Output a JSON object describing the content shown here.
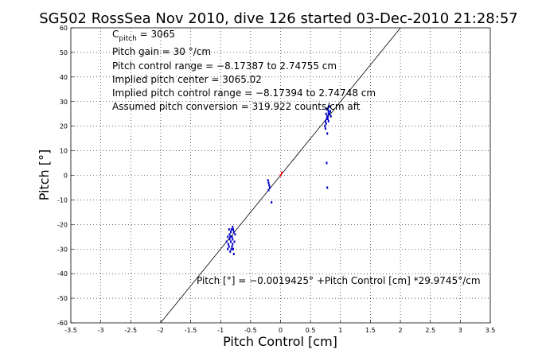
{
  "chart_data": {
    "type": "scatter",
    "title": "SG502 RossSea Nov 2010, dive 126 started 03-Dec-2010 21:28:57",
    "xlabel": "Pitch Control [cm]",
    "ylabel": "Pitch [°]",
    "xlim": [
      -3.5,
      3.5
    ],
    "ylim": [
      -60,
      60
    ],
    "x_ticks": [
      -3.5,
      -3,
      -2.5,
      -2,
      -1.5,
      -1,
      -0.5,
      0,
      0.5,
      1,
      1.5,
      2,
      2.5,
      3,
      3.5
    ],
    "y_ticks": [
      -60,
      -50,
      -40,
      -30,
      -20,
      -10,
      0,
      10,
      20,
      30,
      40,
      50,
      60
    ],
    "grid": true,
    "annotations": {
      "cpitch_symbol": "C",
      "cpitch_sub": "pitch",
      "cpitch_value": " = 3065",
      "gain": "Pitch gain = 30 °/cm",
      "range": "Pitch control range = −8.17387 to 2.74755 cm",
      "center": "Implied pitch center = 3065.02",
      "implied_range": "Implied pitch control range = −8.17394 to 2.74748 cm",
      "conversion": "Assumed pitch conversion = 319.922 counts/cm aft",
      "fit_equation": "Pitch [°] = −0.0019425° +Pitch Control [cm] *29.9745°/cm"
    },
    "fit_line": {
      "intercept": -0.0019425,
      "slope": 29.9745
    },
    "colors": {
      "data": "#0000cc",
      "center": "#ff0000",
      "line": "#000000"
    },
    "series": [
      {
        "points": [
          [
            -0.85,
            -24
          ],
          [
            -0.82,
            -22
          ],
          [
            -0.8,
            -21
          ],
          [
            -0.88,
            -25
          ],
          [
            -0.78,
            -23
          ],
          [
            -0.83,
            -27
          ],
          [
            -0.86,
            -29
          ],
          [
            -0.8,
            -26
          ],
          [
            -0.84,
            -31
          ],
          [
            -0.79,
            -30
          ],
          [
            -0.87,
            -28
          ],
          [
            -0.81,
            -25
          ],
          [
            -0.76,
            -24
          ],
          [
            -0.9,
            -27
          ],
          [
            -0.82,
            -30
          ],
          [
            -0.78,
            -32
          ],
          [
            -0.85,
            -26
          ],
          [
            -0.8,
            -28
          ],
          [
            -0.83,
            -23
          ],
          [
            -0.86,
            -22
          ],
          [
            -0.77,
            -27
          ],
          [
            -0.88,
            -30
          ],
          [
            -0.81,
            -29
          ],
          [
            -0.84,
            -25
          ],
          [
            -0.79,
            -22
          ],
          [
            -0.2,
            -3
          ],
          [
            -0.18,
            -5
          ],
          [
            -0.2,
            -6
          ],
          [
            -0.19,
            -4
          ],
          [
            -0.21,
            -2
          ],
          [
            -0.15,
            -11
          ],
          [
            0.75,
            22
          ],
          [
            0.78,
            24
          ],
          [
            0.8,
            26
          ],
          [
            0.77,
            27
          ],
          [
            0.82,
            25
          ],
          [
            0.76,
            21
          ],
          [
            0.79,
            23
          ],
          [
            0.81,
            28
          ],
          [
            0.74,
            20
          ],
          [
            0.83,
            26
          ],
          [
            0.78,
            24
          ],
          [
            0.8,
            22
          ],
          [
            0.76,
            25
          ],
          [
            0.79,
            27
          ],
          [
            0.84,
            24
          ],
          [
            0.77,
            23
          ],
          [
            0.82,
            28
          ],
          [
            0.75,
            19
          ],
          [
            0.8,
            25
          ],
          [
            0.78,
            17
          ],
          [
            0.77,
            5
          ],
          [
            0.78,
            -5
          ]
        ]
      },
      {
        "points": [
          [
            0.0,
            0.0
          ],
          [
            0.02,
            1
          ]
        ]
      }
    ]
  }
}
